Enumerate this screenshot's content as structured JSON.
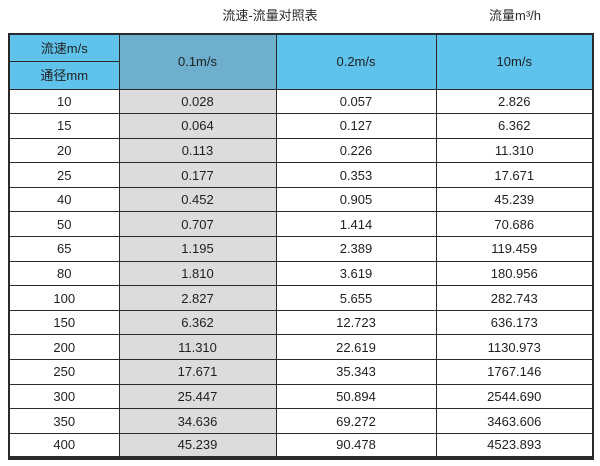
{
  "page": {
    "title": "流速-流量对照表",
    "unit_note": "流量m³/h"
  },
  "colors": {
    "header_blue": "#5fc3eb",
    "highlight_column_blue": "#6fafce",
    "highlight_column_grey": "#dcdcdc",
    "border": "#2a2a2a",
    "text": "#1f1f1f"
  },
  "chart_data": {
    "type": "table",
    "title": "流速-流量对照表",
    "unit_note": "流量m³/h",
    "col_header_label": "流速m/s",
    "row_header_label": "通径mm",
    "columns": [
      "0.1m/s",
      "0.2m/s",
      "10m/s"
    ],
    "highlighted_column": "0.1m/s",
    "rows": [
      {
        "diameter": "10",
        "values": [
          "0.028",
          "0.057",
          "2.826"
        ]
      },
      {
        "diameter": "15",
        "values": [
          "0.064",
          "0.127",
          "6.362"
        ]
      },
      {
        "diameter": "20",
        "values": [
          "0.113",
          "0.226",
          "11.310"
        ]
      },
      {
        "diameter": "25",
        "values": [
          "0.177",
          "0.353",
          "17.671"
        ]
      },
      {
        "diameter": "40",
        "values": [
          "0.452",
          "0.905",
          "45.239"
        ]
      },
      {
        "diameter": "50",
        "values": [
          "0.707",
          "1.414",
          "70.686"
        ]
      },
      {
        "diameter": "65",
        "values": [
          "1.195",
          "2.389",
          "119.459"
        ]
      },
      {
        "diameter": "80",
        "values": [
          "1.810",
          "3.619",
          "180.956"
        ]
      },
      {
        "diameter": "100",
        "values": [
          "2.827",
          "5.655",
          "282.743"
        ]
      },
      {
        "diameter": "150",
        "values": [
          "6.362",
          "12.723",
          "636.173"
        ]
      },
      {
        "diameter": "200",
        "values": [
          "11.310",
          "22.619",
          "1130.973"
        ]
      },
      {
        "diameter": "250",
        "values": [
          "17.671",
          "35.343",
          "1767.146"
        ]
      },
      {
        "diameter": "300",
        "values": [
          "25.447",
          "50.894",
          "2544.690"
        ]
      },
      {
        "diameter": "350",
        "values": [
          "34.636",
          "69.272",
          "3463.606"
        ]
      },
      {
        "diameter": "400",
        "values": [
          "45.239",
          "90.478",
          "4523.893"
        ]
      }
    ]
  }
}
